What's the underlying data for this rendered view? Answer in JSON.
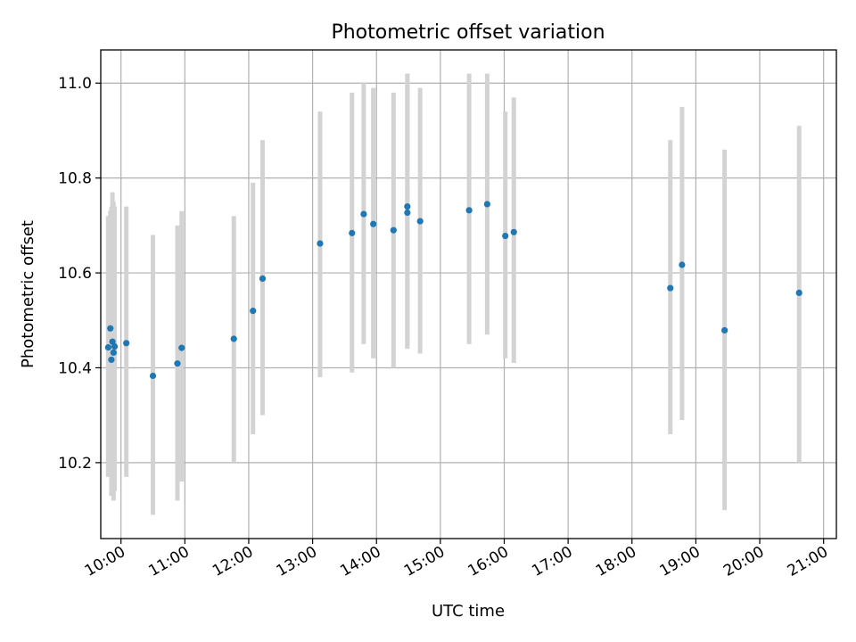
{
  "chart_data": {
    "type": "scatter",
    "title": "Photometric offset variation",
    "xlabel": "UTC time",
    "ylabel": "Photometric offset",
    "x_ticks": [
      "10:00",
      "11:00",
      "12:00",
      "13:00",
      "14:00",
      "15:00",
      "16:00",
      "17:00",
      "18:00",
      "19:00",
      "20:00",
      "21:00"
    ],
    "y_ticks": [
      10.2,
      10.4,
      10.6,
      10.8,
      11.0
    ],
    "xlim": [
      "09:41",
      "21:12"
    ],
    "ylim": [
      10.04,
      11.07
    ],
    "grid": true,
    "colors": {
      "point": "#1f77b4",
      "errorbar": "#d3d3d3"
    },
    "series": [
      {
        "points": [
          {
            "x": "09:48",
            "y": 10.443,
            "lo": 10.17,
            "hi": 10.72
          },
          {
            "x": "09:50",
            "y": 10.483,
            "lo": 10.2,
            "hi": 10.73
          },
          {
            "x": "09:51",
            "y": 10.417,
            "lo": 10.13,
            "hi": 10.74
          },
          {
            "x": "09:52",
            "y": 10.455,
            "lo": 10.15,
            "hi": 10.77
          },
          {
            "x": "09:53",
            "y": 10.432,
            "lo": 10.12,
            "hi": 10.75
          },
          {
            "x": "09:54",
            "y": 10.445,
            "lo": 10.14,
            "hi": 10.74
          },
          {
            "x": "10:05",
            "y": 10.452,
            "lo": 10.17,
            "hi": 10.74
          },
          {
            "x": "10:30",
            "y": 10.383,
            "lo": 10.09,
            "hi": 10.68
          },
          {
            "x": "10:53",
            "y": 10.409,
            "lo": 10.12,
            "hi": 10.7
          },
          {
            "x": "10:57",
            "y": 10.442,
            "lo": 10.16,
            "hi": 10.73
          },
          {
            "x": "11:46",
            "y": 10.461,
            "lo": 10.2,
            "hi": 10.72
          },
          {
            "x": "12:04",
            "y": 10.52,
            "lo": 10.26,
            "hi": 10.79
          },
          {
            "x": "12:13",
            "y": 10.588,
            "lo": 10.3,
            "hi": 10.88
          },
          {
            "x": "13:07",
            "y": 10.662,
            "lo": 10.38,
            "hi": 10.94
          },
          {
            "x": "13:37",
            "y": 10.684,
            "lo": 10.39,
            "hi": 10.98
          },
          {
            "x": "13:48",
            "y": 10.724,
            "lo": 10.45,
            "hi": 11.0
          },
          {
            "x": "13:57",
            "y": 10.703,
            "lo": 10.42,
            "hi": 10.99
          },
          {
            "x": "14:16",
            "y": 10.69,
            "lo": 10.4,
            "hi": 10.98
          },
          {
            "x": "14:29",
            "y": 10.74,
            "lo": 10.44,
            "hi": 11.02
          },
          {
            "x": "14:29",
            "y": 10.727,
            "lo": 10.44,
            "hi": 11.02
          },
          {
            "x": "14:41",
            "y": 10.709,
            "lo": 10.43,
            "hi": 10.99
          },
          {
            "x": "15:27",
            "y": 10.732,
            "lo": 10.45,
            "hi": 11.02
          },
          {
            "x": "15:44",
            "y": 10.745,
            "lo": 10.47,
            "hi": 11.02
          },
          {
            "x": "16:01",
            "y": 10.678,
            "lo": 10.42,
            "hi": 10.94
          },
          {
            "x": "16:09",
            "y": 10.686,
            "lo": 10.41,
            "hi": 10.97
          },
          {
            "x": "18:36",
            "y": 10.568,
            "lo": 10.26,
            "hi": 10.88
          },
          {
            "x": "18:47",
            "y": 10.617,
            "lo": 10.29,
            "hi": 10.95
          },
          {
            "x": "19:27",
            "y": 10.479,
            "lo": 10.1,
            "hi": 10.86
          },
          {
            "x": "20:37",
            "y": 10.558,
            "lo": 10.2,
            "hi": 10.91
          }
        ]
      }
    ]
  }
}
